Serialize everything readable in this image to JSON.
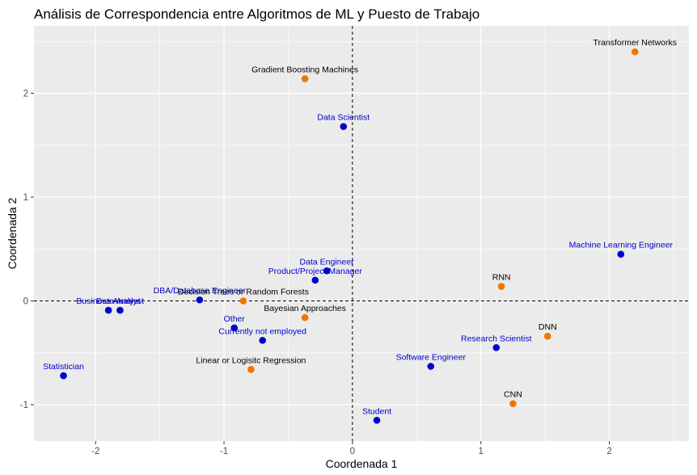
{
  "chart_data": {
    "type": "scatter",
    "title": "Análisis de Correspondencia entre  Algoritmos de ML y Puesto de Trabajo",
    "xlabel": "Coordenada 1",
    "ylabel": "Coordenada 2",
    "xlim": [
      -2.48,
      2.62
    ],
    "ylim": [
      -1.35,
      2.65
    ],
    "xticks": [
      -2,
      -1,
      0,
      1,
      2
    ],
    "yticks": [
      -1,
      0,
      1,
      2
    ],
    "grid": true,
    "reference_lines": {
      "x": 0,
      "y": 0,
      "style": "dashed"
    },
    "colors": {
      "puesto": "#0000CD",
      "algoritmo": "#EE7600",
      "panel": "#EBEBEB",
      "grid": "#FFFFFF"
    },
    "series": [
      {
        "color": "#0000CD",
        "points": [
          {
            "label": "Data Scientist",
            "x": -0.07,
            "y": 1.68
          },
          {
            "label": "Machine Learning Engineer",
            "x": 2.09,
            "y": 0.45
          },
          {
            "label": "Data Engineer",
            "x": -0.2,
            "y": 0.29
          },
          {
            "label": "Product/Project Manager",
            "x": -0.29,
            "y": 0.2
          },
          {
            "label": "DBA/Database Engineer",
            "x": -1.19,
            "y": 0.01
          },
          {
            "label": "Data Analyst",
            "x": -1.81,
            "y": -0.09
          },
          {
            "label": "Business Analyst",
            "x": -1.9,
            "y": -0.09
          },
          {
            "label": "Other",
            "x": -0.92,
            "y": -0.26
          },
          {
            "label": "Currently not employed",
            "x": -0.7,
            "y": -0.38
          },
          {
            "label": "Research Scientist",
            "x": 1.12,
            "y": -0.45
          },
          {
            "label": "Software Engineer",
            "x": 0.61,
            "y": -0.63
          },
          {
            "label": "Statistician",
            "x": -2.25,
            "y": -0.72
          },
          {
            "label": "Student",
            "x": 0.19,
            "y": -1.15
          }
        ]
      },
      {
        "color": "#EE7600",
        "points": [
          {
            "label": "Transformer Networks",
            "x": 2.2,
            "y": 2.4
          },
          {
            "label": "Gradient Boosting Machines",
            "x": -0.37,
            "y": 2.14
          },
          {
            "label": "RNN",
            "x": 1.16,
            "y": 0.14
          },
          {
            "label": "Decision Trees or Random Forests",
            "x": -0.85,
            "y": 0.0
          },
          {
            "label": "Bayesian Approaches",
            "x": -0.37,
            "y": -0.16
          },
          {
            "label": "DNN",
            "x": 1.52,
            "y": -0.34
          },
          {
            "label": "Linear or Logisitc Regression",
            "x": -0.79,
            "y": -0.66
          },
          {
            "label": "CNN",
            "x": 1.25,
            "y": -0.99
          }
        ]
      }
    ]
  }
}
